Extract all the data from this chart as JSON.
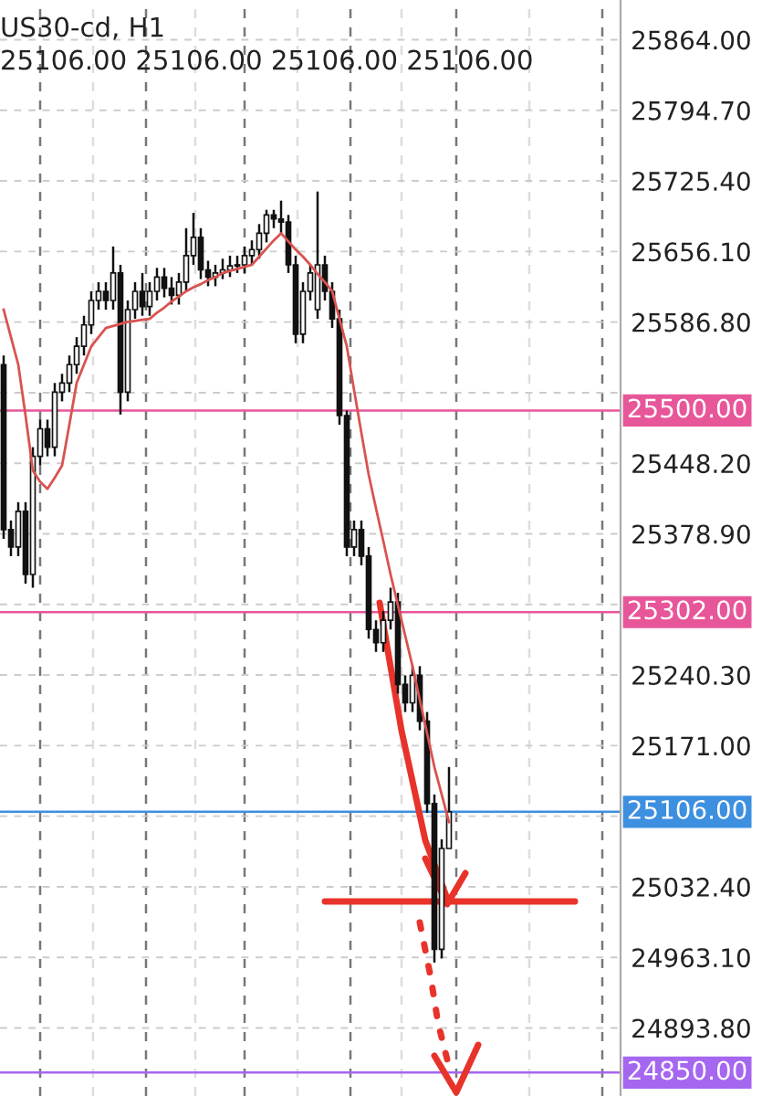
{
  "chart_data": {
    "type": "candlestick",
    "title": "US30-cd, H1",
    "annotations": [
      "25106.00 25106.00 25106.00 25106.00"
    ],
    "categories": [
      null,
      null,
      null,
      null,
      null,
      null,
      null,
      null,
      null,
      null,
      null,
      null,
      null,
      null,
      null,
      null,
      null,
      null,
      null,
      null,
      null,
      null,
      null,
      null,
      null,
      null,
      null,
      null,
      null,
      null,
      null,
      null,
      null,
      null,
      null,
      null,
      null,
      null,
      null,
      null,
      null,
      null,
      null,
      null,
      null,
      null,
      null,
      null,
      null,
      null,
      null,
      null,
      null,
      null,
      null,
      null,
      null,
      null,
      null,
      null,
      null,
      null,
      null,
      null,
      null,
      null,
      null,
      null,
      null,
      null,
      null,
      null,
      null,
      null,
      null,
      null,
      null,
      null,
      null,
      null,
      null,
      null,
      null,
      null,
      null
    ],
    "ohlc": [
      [
        25545,
        25554,
        25374,
        25383
      ],
      [
        25383,
        25392,
        25357,
        25366
      ],
      [
        25366,
        25410,
        25357,
        25401
      ],
      [
        25401,
        25410,
        25330,
        25339
      ],
      [
        25339,
        25464,
        25326,
        25455
      ],
      [
        25455,
        25491,
        25446,
        25482
      ],
      [
        25482,
        25491,
        25455,
        25464
      ],
      [
        25464,
        25527,
        25455,
        25518
      ],
      [
        25518,
        25536,
        25509,
        25527
      ],
      [
        25527,
        25554,
        25518,
        25545
      ],
      [
        25545,
        25572,
        25536,
        25563
      ],
      [
        25563,
        25593,
        25554,
        25584
      ],
      [
        25584,
        25617,
        25575,
        25608
      ],
      [
        25608,
        25626,
        25599,
        25617
      ],
      [
        25617,
        25626,
        25599,
        25608
      ],
      [
        25608,
        25661,
        25599,
        25635
      ],
      [
        25635,
        25643,
        25496,
        25518
      ],
      [
        25518,
        25608,
        25509,
        25599
      ],
      [
        25599,
        25626,
        25590,
        25617
      ],
      [
        25617,
        25635,
        25593,
        25602
      ],
      [
        25602,
        25626,
        25593,
        25617
      ],
      [
        25617,
        25640,
        25608,
        25631
      ],
      [
        25631,
        25640,
        25611,
        25620
      ],
      [
        25620,
        25631,
        25604,
        25613
      ],
      [
        25613,
        25635,
        25604,
        25626
      ],
      [
        25626,
        25679,
        25617,
        25652
      ],
      [
        25652,
        25694,
        25643,
        25670
      ],
      [
        25670,
        25679,
        25629,
        25638
      ],
      [
        25638,
        25647,
        25622,
        25631
      ],
      [
        25631,
        25643,
        25622,
        25635
      ],
      [
        25635,
        25649,
        25629,
        25638
      ],
      [
        25638,
        25652,
        25631,
        25642
      ],
      [
        25642,
        25652,
        25635,
        25643
      ],
      [
        25643,
        25661,
        25635,
        25652
      ],
      [
        25652,
        25667,
        25643,
        25658
      ],
      [
        25658,
        25683,
        25649,
        25674
      ],
      [
        25674,
        25697,
        25665,
        25692
      ],
      [
        25692,
        25697,
        25679,
        25688
      ],
      [
        25688,
        25706,
        25674,
        25685
      ],
      [
        25685,
        25692,
        25635,
        25643
      ],
      [
        25643,
        25652,
        25566,
        25575
      ],
      [
        25575,
        25626,
        25566,
        25617
      ],
      [
        25617,
        25643,
        25608,
        25635
      ],
      [
        25599,
        25715,
        25590,
        25643
      ],
      [
        25643,
        25652,
        25608,
        25617
      ],
      [
        25617,
        25626,
        25581,
        25590
      ],
      [
        25590,
        25599,
        25486,
        25495
      ],
      [
        25495,
        25500,
        25357,
        25366
      ],
      [
        25366,
        25392,
        25357,
        25383
      ],
      [
        25383,
        25392,
        25348,
        25357
      ],
      [
        25357,
        25366,
        25276,
        25285
      ],
      [
        25285,
        25294,
        25263,
        25272
      ],
      [
        25272,
        25303,
        25263,
        25294
      ],
      [
        25294,
        25326,
        25285,
        25312
      ],
      [
        25312,
        25321,
        25222,
        25231
      ],
      [
        25231,
        25240,
        25204,
        25213
      ],
      [
        25213,
        25249,
        25204,
        25240
      ],
      [
        25240,
        25249,
        25186,
        25195
      ],
      [
        25195,
        25204,
        25105,
        25114
      ],
      [
        25114,
        25123,
        24958,
        24971
      ],
      [
        24971,
        25079,
        24962,
        25070
      ],
      [
        25070,
        25150,
        25070,
        25106
      ],
      null,
      null,
      null,
      null,
      null,
      null,
      null,
      null,
      null,
      null,
      null,
      null,
      null,
      null,
      null,
      null,
      null,
      null,
      null,
      null,
      null,
      null,
      null
    ],
    "series": [
      {
        "type": "line",
        "color": "#d9534f",
        "values": [
          25599,
          25572,
          25545,
          25495,
          25441,
          25430,
          25423,
          25434,
          25446,
          25486,
          25527,
          25545,
          25563,
          25572,
          25581,
          25583,
          25585,
          25587,
          25588,
          25589,
          25590,
          25596,
          25601,
          25607,
          25612,
          25617,
          25621,
          25624,
          25628,
          25631,
          25635,
          25637,
          25639,
          25641,
          25643,
          25651,
          25659,
          25667,
          25674,
          25666,
          25658,
          25651,
          25643,
          25634,
          25626,
          25617,
          25590,
          25563,
          25520,
          25478,
          25437,
          25404,
          25372,
          25339,
          25309,
          25279,
          25249,
          25216,
          25183,
          25150,
          25123,
          25096,
          null,
          null,
          null,
          null,
          null,
          null,
          null,
          null,
          null,
          null,
          null,
          null,
          null,
          null,
          null,
          null,
          null,
          null,
          null,
          null,
          null,
          null,
          null
        ]
      }
    ],
    "ylim": [
      24827,
      25903
    ],
    "yticks": [
      {
        "value": 25864,
        "label": "25864.00"
      },
      {
        "value": 25794.7,
        "label": "25794.70"
      },
      {
        "value": 25725.4,
        "label": "25725.40"
      },
      {
        "value": 25656.1,
        "label": "25656.10"
      },
      {
        "value": 25586.8,
        "label": "25586.80"
      },
      {
        "value": 25517.5,
        "label": null
      },
      {
        "value": 25448.2,
        "label": "25448.20"
      },
      {
        "value": 25378.9,
        "label": "25378.90"
      },
      {
        "value": 25309.6,
        "label": null
      },
      {
        "value": 25240.3,
        "label": "25240.30"
      },
      {
        "value": 25171,
        "label": "25171.00"
      },
      {
        "value": 25101.7,
        "label": null
      },
      {
        "value": 25032.4,
        "label": "25032.40"
      },
      {
        "value": 24963.1,
        "label": "24963.10"
      },
      {
        "value": 24893.8,
        "label": "24893.80"
      }
    ],
    "ref_lines": [
      {
        "axis": "y",
        "value": 25500,
        "label": "25500.00",
        "color": "#e8569a"
      },
      {
        "axis": "y",
        "value": 25302,
        "label": "25302.00",
        "color": "#e8569a"
      },
      {
        "axis": "y",
        "value": 25106,
        "label": "25106.00",
        "color": "#3d8fe0"
      },
      {
        "axis": "y",
        "value": 24850,
        "label": "24850.00",
        "color": "#a566f0"
      },
      {
        "axis": "y",
        "value": 25018,
        "color": "#e8332a"
      }
    ],
    "grid": true,
    "tick_labels": "y"
  }
}
